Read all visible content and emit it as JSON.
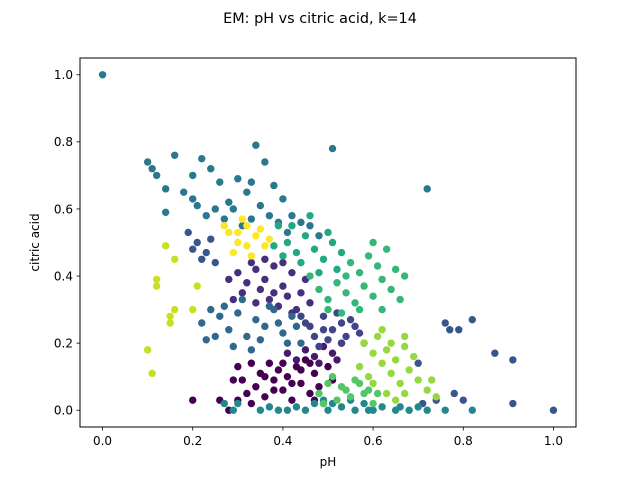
{
  "chart_data": {
    "type": "scatter",
    "title": "EM: pH vs citric acid, k=14",
    "xlabel": "pH",
    "ylabel": "citric acid",
    "xlim": [
      -0.05,
      1.05
    ],
    "ylim": [
      -0.05,
      1.05
    ],
    "xticks": [
      "0.0",
      "0.2",
      "0.4",
      "0.6",
      "0.8",
      "1.0"
    ],
    "yticks": [
      "0.0",
      "0.2",
      "0.4",
      "0.6",
      "0.8",
      "1.0"
    ],
    "grid": false,
    "colors": {
      "c0": "#440154",
      "c1": "#481a6c",
      "c2": "#472f7d",
      "c3": "#414487",
      "c4": "#39568c",
      "c5": "#31688e",
      "c6": "#2a788e",
      "c7": "#23888e",
      "c8": "#1f988b",
      "c9": "#22a884",
      "c10": "#35b779",
      "c11": "#54c568",
      "c12": "#95d840",
      "c13": "#c8e020",
      "c14": "#fde725"
    },
    "series": [
      {
        "color_key": "c0",
        "points": [
          [
            0.2,
            0.03
          ],
          [
            0.26,
            0.03
          ],
          [
            0.3,
            0.13
          ],
          [
            0.31,
            0.09
          ],
          [
            0.32,
            0.05
          ],
          [
            0.33,
            0.14
          ],
          [
            0.34,
            0.07
          ],
          [
            0.35,
            0.11
          ],
          [
            0.36,
            0.04
          ],
          [
            0.37,
            0.14
          ],
          [
            0.38,
            0.09
          ],
          [
            0.39,
            0.12
          ],
          [
            0.4,
            0.06
          ],
          [
            0.41,
            0.1
          ],
          [
            0.42,
            0.03
          ],
          [
            0.43,
            0.13
          ],
          [
            0.44,
            0.08
          ],
          [
            0.45,
            0.15
          ],
          [
            0.46,
            0.05
          ],
          [
            0.47,
            0.11
          ],
          [
            0.48,
            0.07
          ],
          [
            0.5,
            0.13
          ],
          [
            0.49,
            0.02
          ],
          [
            0.36,
            0.1
          ],
          [
            0.4,
            0.14
          ],
          [
            0.44,
            0.12
          ],
          [
            0.38,
            0.06
          ],
          [
            0.42,
            0.08
          ],
          [
            0.46,
            0.14
          ],
          [
            0.33,
            0.02
          ],
          [
            0.29,
            0.09
          ],
          [
            0.51,
            0.09
          ],
          [
            0.28,
            0.0
          ],
          [
            0.3,
            0.03
          ],
          [
            0.47,
            0.03
          ]
        ]
      },
      {
        "color_key": "c1",
        "points": [
          [
            0.41,
            0.17
          ],
          [
            0.43,
            0.15
          ],
          [
            0.45,
            0.18
          ],
          [
            0.47,
            0.16
          ],
          [
            0.49,
            0.19
          ],
          [
            0.51,
            0.17
          ],
          [
            0.53,
            0.2
          ],
          [
            0.48,
            0.14
          ],
          [
            0.52,
            0.15
          ]
        ]
      },
      {
        "color_key": "c2",
        "points": [
          [
            0.3,
            0.41
          ],
          [
            0.32,
            0.38
          ],
          [
            0.34,
            0.42
          ],
          [
            0.36,
            0.39
          ],
          [
            0.38,
            0.43
          ],
          [
            0.4,
            0.37
          ],
          [
            0.42,
            0.41
          ],
          [
            0.44,
            0.35
          ],
          [
            0.35,
            0.36
          ],
          [
            0.37,
            0.33
          ],
          [
            0.39,
            0.31
          ],
          [
            0.41,
            0.34
          ],
          [
            0.43,
            0.3
          ],
          [
            0.33,
            0.44
          ],
          [
            0.31,
            0.35
          ],
          [
            0.28,
            0.39
          ],
          [
            0.36,
            0.45
          ],
          [
            0.4,
            0.44
          ],
          [
            0.45,
            0.39
          ],
          [
            0.29,
            0.33
          ],
          [
            0.34,
            0.32
          ],
          [
            0.42,
            0.29
          ],
          [
            0.38,
            0.35
          ],
          [
            0.46,
            0.32
          ]
        ]
      },
      {
        "color_key": "c3",
        "points": [
          [
            0.45,
            0.26
          ],
          [
            0.47,
            0.22
          ],
          [
            0.49,
            0.28
          ],
          [
            0.51,
            0.24
          ],
          [
            0.53,
            0.2
          ],
          [
            0.55,
            0.27
          ],
          [
            0.57,
            0.23
          ],
          [
            0.48,
            0.19
          ],
          [
            0.52,
            0.29
          ],
          [
            0.54,
            0.22
          ],
          [
            0.46,
            0.25
          ],
          [
            0.5,
            0.21
          ],
          [
            0.56,
            0.25
          ],
          [
            0.58,
            0.2
          ],
          [
            0.44,
            0.28
          ],
          [
            0.53,
            0.26
          ],
          [
            0.49,
            0.24
          ]
        ]
      },
      {
        "color_key": "c4",
        "points": [
          [
            0.19,
            0.53
          ],
          [
            0.21,
            0.5
          ],
          [
            0.23,
            0.47
          ],
          [
            0.25,
            0.44
          ],
          [
            0.2,
            0.48
          ],
          [
            0.24,
            0.51
          ],
          [
            0.22,
            0.45
          ],
          [
            0.7,
            0.14
          ],
          [
            0.76,
            0.26
          ],
          [
            0.77,
            0.24
          ],
          [
            0.79,
            0.24
          ],
          [
            0.82,
            0.27
          ],
          [
            0.87,
            0.17
          ],
          [
            0.91,
            0.15
          ],
          [
            0.91,
            0.02
          ],
          [
            1.0,
            0.0
          ],
          [
            0.78,
            0.05
          ],
          [
            0.8,
            0.03
          ],
          [
            0.74,
            0.03
          ],
          [
            0.71,
            0.02
          ]
        ]
      },
      {
        "color_key": "c5",
        "points": [
          [
            0.22,
            0.26
          ],
          [
            0.24,
            0.3
          ],
          [
            0.26,
            0.28
          ],
          [
            0.28,
            0.24
          ],
          [
            0.3,
            0.29
          ],
          [
            0.32,
            0.22
          ],
          [
            0.34,
            0.27
          ],
          [
            0.36,
            0.25
          ],
          [
            0.38,
            0.3
          ],
          [
            0.4,
            0.23
          ],
          [
            0.42,
            0.28
          ],
          [
            0.44,
            0.2
          ],
          [
            0.27,
            0.31
          ],
          [
            0.29,
            0.19
          ],
          [
            0.31,
            0.33
          ],
          [
            0.33,
            0.18
          ],
          [
            0.35,
            0.21
          ],
          [
            0.37,
            0.31
          ],
          [
            0.39,
            0.26
          ],
          [
            0.41,
            0.2
          ],
          [
            0.43,
            0.25
          ],
          [
            0.25,
            0.22
          ],
          [
            0.23,
            0.21
          ]
        ]
      },
      {
        "color_key": "c6",
        "points": [
          [
            0.0,
            1.0
          ],
          [
            0.1,
            0.74
          ],
          [
            0.12,
            0.7
          ],
          [
            0.14,
            0.66
          ],
          [
            0.16,
            0.76
          ],
          [
            0.18,
            0.65
          ],
          [
            0.2,
            0.63
          ],
          [
            0.22,
            0.75
          ],
          [
            0.24,
            0.72
          ],
          [
            0.26,
            0.68
          ],
          [
            0.28,
            0.62
          ],
          [
            0.3,
            0.69
          ],
          [
            0.32,
            0.65
          ],
          [
            0.34,
            0.79
          ],
          [
            0.36,
            0.74
          ],
          [
            0.38,
            0.67
          ],
          [
            0.4,
            0.63
          ],
          [
            0.42,
            0.58
          ],
          [
            0.44,
            0.56
          ],
          [
            0.46,
            0.55
          ],
          [
            0.48,
            0.52
          ],
          [
            0.51,
            0.78
          ],
          [
            0.29,
            0.6
          ],
          [
            0.31,
            0.55
          ],
          [
            0.33,
            0.68
          ],
          [
            0.35,
            0.61
          ],
          [
            0.37,
            0.58
          ],
          [
            0.23,
            0.58
          ],
          [
            0.25,
            0.6
          ],
          [
            0.27,
            0.57
          ],
          [
            0.14,
            0.59
          ],
          [
            0.21,
            0.61
          ],
          [
            0.39,
            0.56
          ],
          [
            0.41,
            0.53
          ],
          [
            0.72,
            0.66
          ],
          [
            0.11,
            0.72
          ],
          [
            0.2,
            0.7
          ],
          [
            0.33,
            0.57
          ]
        ]
      },
      {
        "color_key": "c7",
        "points": [
          [
            0.35,
            0.0
          ],
          [
            0.37,
            0.01
          ],
          [
            0.39,
            0.0
          ],
          [
            0.41,
            0.0
          ],
          [
            0.43,
            0.01
          ],
          [
            0.45,
            0.0
          ],
          [
            0.47,
            0.02
          ],
          [
            0.5,
            0.0
          ],
          [
            0.53,
            0.01
          ],
          [
            0.56,
            0.0
          ],
          [
            0.59,
            0.0
          ],
          [
            0.62,
            0.01
          ],
          [
            0.65,
            0.0
          ],
          [
            0.68,
            0.0
          ],
          [
            0.7,
            0.01
          ],
          [
            0.72,
            0.0
          ],
          [
            0.76,
            0.0
          ],
          [
            0.82,
            0.0
          ],
          [
            0.27,
            0.02
          ],
          [
            0.29,
            0.0
          ],
          [
            0.3,
            0.02
          ],
          [
            0.58,
            0.02
          ],
          [
            0.6,
            0.0
          ],
          [
            0.66,
            0.01
          ],
          [
            0.55,
            0.03
          ],
          [
            0.51,
            0.02
          ],
          [
            0.49,
            0.03
          ]
        ]
      },
      {
        "color_key": "c9",
        "points": [
          [
            0.39,
            0.55
          ],
          [
            0.41,
            0.5
          ],
          [
            0.43,
            0.47
          ],
          [
            0.45,
            0.52
          ],
          [
            0.47,
            0.48
          ],
          [
            0.49,
            0.45
          ],
          [
            0.51,
            0.5
          ],
          [
            0.4,
            0.46
          ],
          [
            0.44,
            0.44
          ],
          [
            0.48,
            0.41
          ],
          [
            0.53,
            0.47
          ],
          [
            0.42,
            0.55
          ],
          [
            0.46,
            0.58
          ],
          [
            0.5,
            0.53
          ],
          [
            0.38,
            0.49
          ],
          [
            0.52,
            0.42
          ]
        ]
      },
      {
        "color_key": "c10",
        "points": [
          [
            0.46,
            0.4
          ],
          [
            0.48,
            0.36
          ],
          [
            0.5,
            0.33
          ],
          [
            0.52,
            0.38
          ],
          [
            0.54,
            0.35
          ],
          [
            0.56,
            0.32
          ],
          [
            0.58,
            0.37
          ],
          [
            0.6,
            0.34
          ],
          [
            0.62,
            0.39
          ],
          [
            0.64,
            0.36
          ],
          [
            0.66,
            0.33
          ],
          [
            0.55,
            0.44
          ],
          [
            0.57,
            0.41
          ],
          [
            0.59,
            0.46
          ],
          [
            0.61,
            0.43
          ],
          [
            0.63,
            0.48
          ],
          [
            0.65,
            0.42
          ],
          [
            0.53,
            0.29
          ],
          [
            0.57,
            0.3
          ],
          [
            0.6,
            0.5
          ],
          [
            0.67,
            0.4
          ],
          [
            0.54,
            0.4
          ],
          [
            0.5,
            0.3
          ],
          [
            0.62,
            0.3
          ]
        ]
      },
      {
        "color_key": "c11",
        "points": [
          [
            0.48,
            0.05
          ],
          [
            0.5,
            0.08
          ],
          [
            0.52,
            0.03
          ],
          [
            0.54,
            0.06
          ],
          [
            0.56,
            0.09
          ],
          [
            0.58,
            0.05
          ],
          [
            0.6,
            0.02
          ],
          [
            0.51,
            0.1
          ],
          [
            0.53,
            0.07
          ],
          [
            0.55,
            0.04
          ],
          [
            0.57,
            0.08
          ],
          [
            0.59,
            0.06
          ],
          [
            0.49,
            0.02
          ],
          [
            0.61,
            0.05
          ]
        ]
      },
      {
        "color_key": "c12",
        "points": [
          [
            0.58,
            0.2
          ],
          [
            0.6,
            0.17
          ],
          [
            0.62,
            0.14
          ],
          [
            0.64,
            0.11
          ],
          [
            0.66,
            0.08
          ],
          [
            0.68,
            0.12
          ],
          [
            0.7,
            0.09
          ],
          [
            0.72,
            0.06
          ],
          [
            0.74,
            0.04
          ],
          [
            0.61,
            0.22
          ],
          [
            0.63,
            0.18
          ],
          [
            0.65,
            0.15
          ],
          [
            0.67,
            0.19
          ],
          [
            0.69,
            0.16
          ],
          [
            0.57,
            0.13
          ],
          [
            0.59,
            0.1
          ],
          [
            0.63,
            0.05
          ],
          [
            0.65,
            0.03
          ],
          [
            0.67,
            0.05
          ],
          [
            0.73,
            0.09
          ],
          [
            0.6,
            0.08
          ],
          [
            0.62,
            0.24
          ],
          [
            0.64,
            0.2
          ],
          [
            0.67,
            0.22
          ]
        ]
      },
      {
        "color_key": "c13",
        "points": [
          [
            0.1,
            0.18
          ],
          [
            0.11,
            0.11
          ],
          [
            0.12,
            0.39
          ],
          [
            0.12,
            0.37
          ],
          [
            0.14,
            0.49
          ],
          [
            0.15,
            0.28
          ],
          [
            0.15,
            0.26
          ],
          [
            0.16,
            0.3
          ],
          [
            0.16,
            0.45
          ],
          [
            0.2,
            0.3
          ],
          [
            0.21,
            0.37
          ]
        ]
      },
      {
        "color_key": "c14",
        "points": [
          [
            0.28,
            0.53
          ],
          [
            0.3,
            0.5
          ],
          [
            0.32,
            0.55
          ],
          [
            0.34,
            0.52
          ],
          [
            0.36,
            0.49
          ],
          [
            0.29,
            0.47
          ],
          [
            0.31,
            0.57
          ],
          [
            0.33,
            0.46
          ],
          [
            0.35,
            0.54
          ],
          [
            0.37,
            0.51
          ],
          [
            0.27,
            0.55
          ],
          [
            0.3,
            0.53
          ],
          [
            0.32,
            0.49
          ]
        ]
      }
    ]
  }
}
